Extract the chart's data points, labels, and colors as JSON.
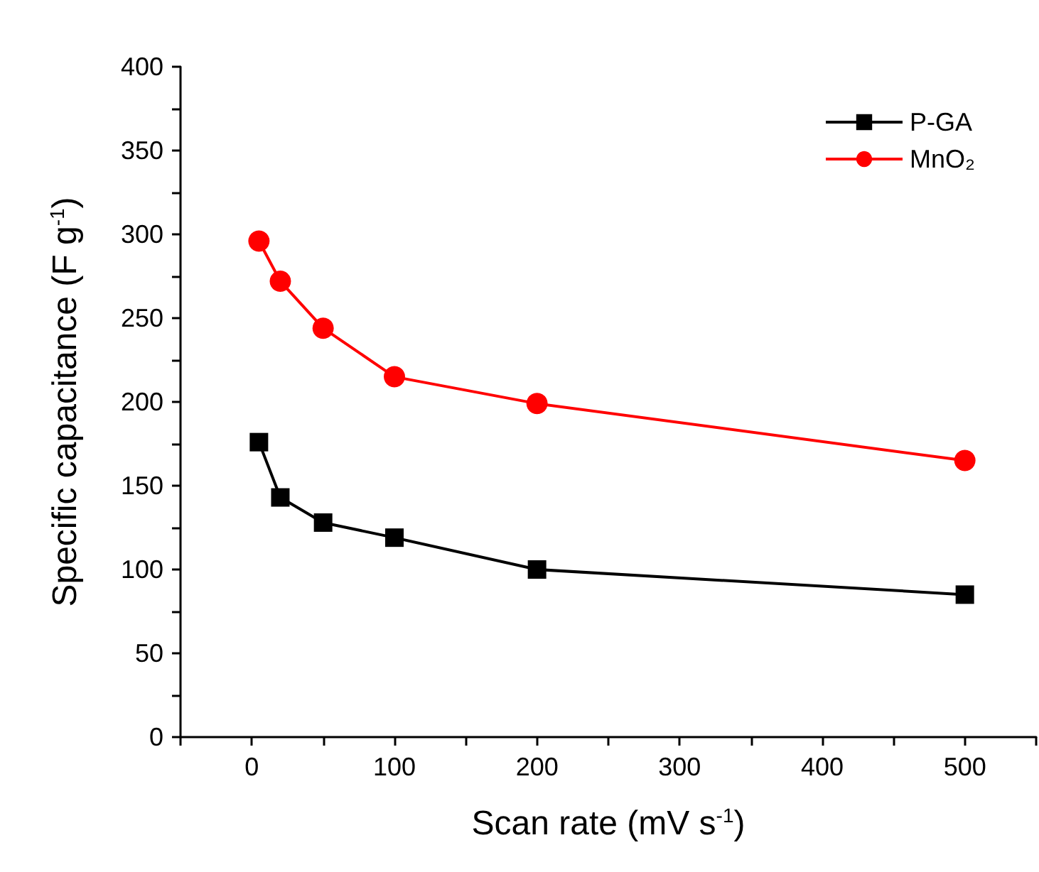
{
  "chart_data": {
    "type": "line",
    "xlabel": "Scan rate (mV s$^{-1}$)",
    "ylabel": "Specific capacitance (F g$^{-1}$)",
    "x": [
      5,
      20,
      50,
      100,
      200,
      500
    ],
    "series": [
      {
        "name": "P-GA",
        "color": "#000000",
        "marker": "square",
        "values": [
          176,
          143,
          128,
          119,
          100,
          85
        ]
      },
      {
        "name": "MnO₂",
        "color": "#ff0000",
        "marker": "circle",
        "values": [
          296,
          272,
          244,
          215,
          199,
          165
        ]
      }
    ],
    "xlim": [
      -50,
      550
    ],
    "xticks": [
      {
        "value": -50,
        "label": null
      },
      0,
      {
        "value": 50,
        "label": null
      },
      100,
      {
        "value": 150,
        "label": null
      },
      200,
      {
        "value": 250,
        "label": null
      },
      300,
      {
        "value": 350,
        "label": null
      },
      400,
      {
        "value": 450,
        "label": null
      },
      500,
      {
        "value": 550,
        "label": null
      }
    ],
    "ylim": [
      0,
      400
    ],
    "yticks": [
      0,
      {
        "value": 25,
        "label": null
      },
      50,
      {
        "value": 75,
        "label": null
      },
      100,
      {
        "value": 125,
        "label": null
      },
      150,
      {
        "value": 175,
        "label": null
      },
      200,
      {
        "value": 225,
        "label": null
      },
      250,
      {
        "value": 275,
        "label": null
      },
      300,
      {
        "value": 325,
        "label": null
      },
      350,
      {
        "value": 375,
        "label": null
      },
      400
    ],
    "grid": false,
    "legend": "top right",
    "line_style": "solid"
  }
}
